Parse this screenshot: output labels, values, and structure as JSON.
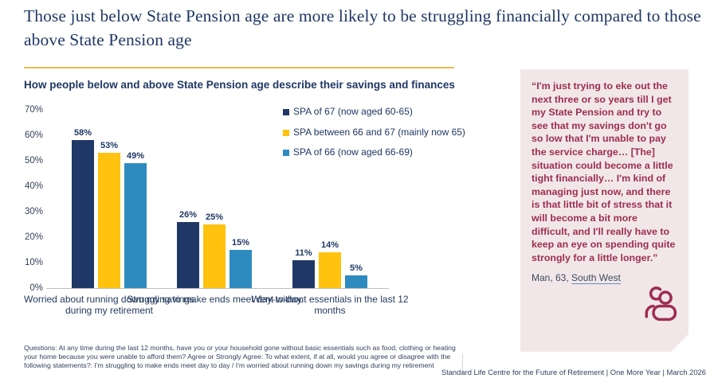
{
  "page": {
    "title": "Those just below State Pension age are more likely to be struggling financially compared to those above State Pension age"
  },
  "chart_data": {
    "type": "bar",
    "title": "How people below and above State Pension age describe their savings and finances",
    "categories": [
      "Worried about running down my savings during my retirement",
      "Struggling to make ends meet day-to-day",
      "Went without essentials in the last 12 months"
    ],
    "series": [
      {
        "name": "SPA of 67 (now aged 60-65)",
        "color": "#1F3867",
        "values": [
          58,
          26,
          11
        ]
      },
      {
        "name": "SPA between 66 and 67 (mainly now 65)",
        "color": "#FFC20E",
        "values": [
          53,
          25,
          14
        ]
      },
      {
        "name": "SPA of 66 (now aged 66-69)",
        "color": "#2E8BC0",
        "values": [
          49,
          15,
          5
        ]
      }
    ],
    "value_suffix": "%",
    "ylim": [
      0,
      70
    ],
    "ytick_step": 10,
    "yticks": [
      "70%",
      "60%",
      "50%",
      "40%",
      "30%",
      "20%",
      "10%",
      "0%"
    ],
    "grid": false,
    "legend_position": "upper-right"
  },
  "quote": {
    "text": "“I'm just trying to eke out the next three or so years till I get my State Pension and try to see that my savings don't go so low that I'm unable to pay the service charge… [The] situation could become a little tight financially… I'm kind of managing just now, and there is that little bit of stress that it will become a bit more difficult, and I'll really have to keep an eye on spending quite strongly for a little longer.”",
    "attribution_prefix": "Man, 63, ",
    "attribution_link": "South West",
    "icon": "people-icon"
  },
  "footnote": "Questions: At any time during the last 12 months, have you or your household gone without basic essentials such as food, clothing or heating your home because you were unable to afford them?  Agree or Strongly Agree: To what extent, if at all, would you agree or disagree with the following statements?: I'm struggling to make ends meet day to day / I'm worried about running down my savings during my retirement",
  "footer": "Standard Life Centre for the Future of Retirement   |   One More Year | March 2026",
  "colors": {
    "title_navy": "#1F3864",
    "gold_divider": "#E8BC52",
    "bar_navy": "#1F3867",
    "bar_yellow": "#FFC20E",
    "bar_blue": "#2E8BC0",
    "quote_bg": "#F1E7E9",
    "quote_text": "#9D2D52"
  }
}
